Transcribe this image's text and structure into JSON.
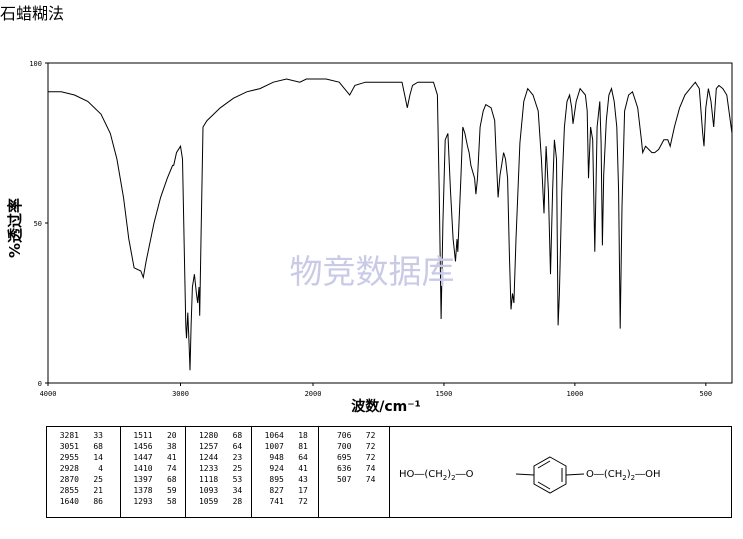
{
  "page": {
    "method_title": "石蜡糊法",
    "watermark": "物竞数据库"
  },
  "chart_data": {
    "type": "line",
    "title": "石蜡糊法",
    "xlabel": "波数/cm⁻¹",
    "ylabel": "透过率",
    "ylabel_unit": "%",
    "xlim": [
      4000,
      400
    ],
    "ylim": [
      0,
      100
    ],
    "x_ticks": [
      "4000",
      "3000",
      "2000",
      "1500",
      "1000",
      "500"
    ],
    "y_ticks": [
      "0",
      "50",
      "100"
    ],
    "grid": false,
    "series": [
      {
        "values": [
          [
            4000,
            91
          ],
          [
            3900,
            91
          ],
          [
            3800,
            90
          ],
          [
            3700,
            88
          ],
          [
            3600,
            84
          ],
          [
            3530,
            78
          ],
          [
            3480,
            70
          ],
          [
            3430,
            58
          ],
          [
            3390,
            45
          ],
          [
            3350,
            36
          ],
          [
            3300,
            35
          ],
          [
            3281,
            33
          ],
          [
            3260,
            38
          ],
          [
            3200,
            50
          ],
          [
            3150,
            58
          ],
          [
            3100,
            64
          ],
          [
            3060,
            68
          ],
          [
            3051,
            68
          ],
          [
            3030,
            72
          ],
          [
            3000,
            74
          ],
          [
            2985,
            70
          ],
          [
            2970,
            38
          ],
          [
            2960,
            18
          ],
          [
            2955,
            14
          ],
          [
            2945,
            22
          ],
          [
            2935,
            12
          ],
          [
            2928,
            4
          ],
          [
            2920,
            18
          ],
          [
            2910,
            30
          ],
          [
            2895,
            34
          ],
          [
            2880,
            28
          ],
          [
            2870,
            25
          ],
          [
            2860,
            30
          ],
          [
            2855,
            21
          ],
          [
            2845,
            45
          ],
          [
            2830,
            80
          ],
          [
            2800,
            82
          ],
          [
            2700,
            86
          ],
          [
            2600,
            89
          ],
          [
            2500,
            91
          ],
          [
            2400,
            92
          ],
          [
            2300,
            94
          ],
          [
            2200,
            95
          ],
          [
            2100,
            94
          ],
          [
            2050,
            95
          ],
          [
            2000,
            95
          ],
          [
            1950,
            95
          ],
          [
            1900,
            94
          ],
          [
            1880,
            92
          ],
          [
            1860,
            90
          ],
          [
            1840,
            93
          ],
          [
            1800,
            94
          ],
          [
            1750,
            94
          ],
          [
            1700,
            94
          ],
          [
            1660,
            94
          ],
          [
            1650,
            90
          ],
          [
            1640,
            86
          ],
          [
            1630,
            90
          ],
          [
            1620,
            93
          ],
          [
            1600,
            94
          ],
          [
            1570,
            94
          ],
          [
            1540,
            94
          ],
          [
            1525,
            90
          ],
          [
            1518,
            60
          ],
          [
            1511,
            20
          ],
          [
            1504,
            50
          ],
          [
            1495,
            76
          ],
          [
            1485,
            78
          ],
          [
            1475,
            60
          ],
          [
            1465,
            45
          ],
          [
            1456,
            38
          ],
          [
            1450,
            45
          ],
          [
            1447,
            41
          ],
          [
            1435,
            65
          ],
          [
            1428,
            80
          ],
          [
            1420,
            78
          ],
          [
            1410,
            74
          ],
          [
            1404,
            72
          ],
          [
            1397,
            68
          ],
          [
            1390,
            66
          ],
          [
            1383,
            64
          ],
          [
            1378,
            59
          ],
          [
            1372,
            64
          ],
          [
            1362,
            80
          ],
          [
            1350,
            85
          ],
          [
            1340,
            87
          ],
          [
            1320,
            86
          ],
          [
            1306,
            82
          ],
          [
            1300,
            70
          ],
          [
            1293,
            58
          ],
          [
            1286,
            65
          ],
          [
            1280,
            68
          ],
          [
            1272,
            72
          ],
          [
            1265,
            70
          ],
          [
            1257,
            64
          ],
          [
            1250,
            40
          ],
          [
            1244,
            23
          ],
          [
            1238,
            28
          ],
          [
            1233,
            25
          ],
          [
            1225,
            45
          ],
          [
            1210,
            75
          ],
          [
            1195,
            88
          ],
          [
            1180,
            92
          ],
          [
            1160,
            90
          ],
          [
            1140,
            85
          ],
          [
            1128,
            70
          ],
          [
            1118,
            53
          ],
          [
            1110,
            74
          ],
          [
            1101,
            60
          ],
          [
            1093,
            34
          ],
          [
            1085,
            60
          ],
          [
            1078,
            76
          ],
          [
            1070,
            70
          ],
          [
            1064,
            18
          ],
          [
            1059,
            28
          ],
          [
            1050,
            60
          ],
          [
            1040,
            80
          ],
          [
            1030,
            88
          ],
          [
            1020,
            90
          ],
          [
            1012,
            86
          ],
          [
            1007,
            81
          ],
          [
            995,
            88
          ],
          [
            980,
            92
          ],
          [
            960,
            90
          ],
          [
            953,
            85
          ],
          [
            948,
            64
          ],
          [
            940,
            80
          ],
          [
            932,
            76
          ],
          [
            924,
            41
          ],
          [
            915,
            80
          ],
          [
            905,
            88
          ],
          [
            900,
            75
          ],
          [
            895,
            43
          ],
          [
            890,
            65
          ],
          [
            880,
            82
          ],
          [
            870,
            90
          ],
          [
            860,
            92
          ],
          [
            850,
            88
          ],
          [
            840,
            80
          ],
          [
            833,
            60
          ],
          [
            827,
            17
          ],
          [
            820,
            55
          ],
          [
            810,
            85
          ],
          [
            795,
            90
          ],
          [
            780,
            91
          ],
          [
            760,
            86
          ],
          [
            746,
            76
          ],
          [
            741,
            72
          ],
          [
            730,
            74
          ],
          [
            718,
            73
          ],
          [
            706,
            72
          ],
          [
            700,
            72
          ],
          [
            695,
            72
          ],
          [
            680,
            73
          ],
          [
            660,
            76
          ],
          [
            645,
            76
          ],
          [
            636,
            74
          ],
          [
            620,
            80
          ],
          [
            600,
            86
          ],
          [
            580,
            90
          ],
          [
            560,
            92
          ],
          [
            540,
            94
          ],
          [
            525,
            92
          ],
          [
            512,
            78
          ],
          [
            507,
            74
          ],
          [
            500,
            86
          ],
          [
            490,
            92
          ],
          [
            480,
            88
          ],
          [
            470,
            80
          ],
          [
            460,
            92
          ],
          [
            450,
            93
          ],
          [
            435,
            92
          ],
          [
            420,
            90
          ],
          [
            410,
            84
          ],
          [
            400,
            78
          ]
        ]
      }
    ]
  },
  "peak_table": {
    "columns": [
      [
        [
          "3281",
          "33"
        ],
        [
          "3051",
          "68"
        ],
        [
          "2955",
          "14"
        ],
        [
          "2928",
          "4"
        ],
        [
          "2870",
          "25"
        ],
        [
          "2855",
          "21"
        ],
        [
          "1640",
          "86"
        ]
      ],
      [
        [
          "1511",
          "20"
        ],
        [
          "1456",
          "38"
        ],
        [
          "1447",
          "41"
        ],
        [
          "1410",
          "74"
        ],
        [
          "1397",
          "68"
        ],
        [
          "1378",
          "59"
        ],
        [
          "1293",
          "58"
        ]
      ],
      [
        [
          "1280",
          "68"
        ],
        [
          "1257",
          "64"
        ],
        [
          "1244",
          "23"
        ],
        [
          "1233",
          "25"
        ],
        [
          "1118",
          "53"
        ],
        [
          "1093",
          "34"
        ],
        [
          "1059",
          "28"
        ]
      ],
      [
        [
          "1064",
          "18"
        ],
        [
          "1007",
          "81"
        ],
        [
          "948",
          "64"
        ],
        [
          "924",
          "41"
        ],
        [
          "895",
          "43"
        ],
        [
          "827",
          "17"
        ],
        [
          "741",
          "72"
        ]
      ],
      [
        [
          "706",
          "72"
        ],
        [
          "700",
          "72"
        ],
        [
          "695",
          "72"
        ],
        [
          "636",
          "74"
        ],
        [
          "507",
          "74"
        ]
      ]
    ]
  },
  "structure": {
    "left_group": "HO―(CH",
    "left_sub": "2",
    "left_tail": ")",
    "left_n": "2",
    "left_o": "O",
    "right_o": "O",
    "right_group": "(CH",
    "right_sub": "2",
    "right_tail": ")",
    "right_n": "2",
    "right_oh": "OH"
  }
}
